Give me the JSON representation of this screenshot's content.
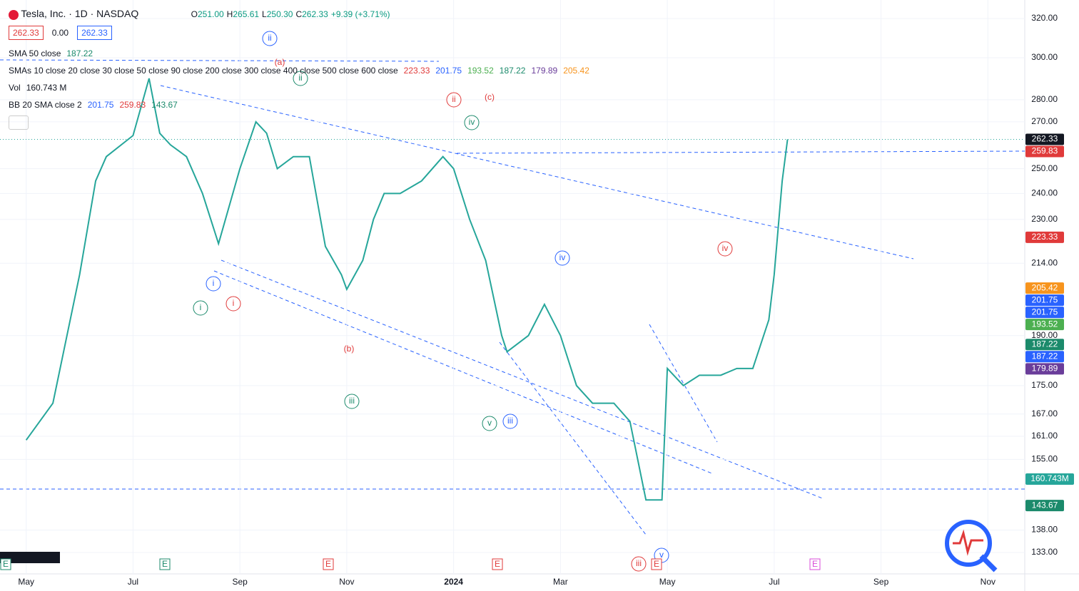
{
  "header": {
    "symbol": "Tesla, Inc. · 1D · NASDAQ",
    "ohlc": [
      "O",
      "251.00",
      "H",
      "265.61",
      "L",
      "250.30",
      "C",
      "262.33",
      "+9.39 (+3.71%)"
    ],
    "boxes": [
      "262.33",
      "0.00",
      "262.33"
    ]
  },
  "indicators": [
    {
      "name": "SMA 50 close",
      "values": [
        "187.22"
      ],
      "colors": [
        "#1b8a6b"
      ]
    },
    {
      "name": "SMAs 10 close 20 close 30 close 50 close 90 close 200 close 300 close 400 close 500 close 600 close",
      "values": [
        "223.33",
        "201.75",
        "193.52",
        "187.22",
        "179.89",
        "205.42"
      ],
      "colors": [
        "#e03a3a",
        "#2962ff",
        "#4caf50",
        "#1b8a6b",
        "#6a3d9a",
        "#f7941d"
      ]
    },
    {
      "name": "Vol",
      "values": [
        "160.743 M"
      ],
      "colors": [
        "#131722"
      ]
    },
    {
      "name": "BB 20 SMA close 2",
      "values": [
        "201.75",
        "259.83",
        "143.67"
      ],
      "colors": [
        "#2962ff",
        "#e03a3a",
        "#1b8a6b"
      ]
    }
  ],
  "chart_data": {
    "type": "line",
    "log": true,
    "grid": true,
    "x": [
      0,
      0.5,
      1,
      1.3,
      1.5,
      2,
      2.3,
      2.5,
      2.7,
      3,
      3.3,
      3.6,
      4,
      4.3,
      4.5,
      4.7,
      5,
      5.3,
      5.6,
      5.9,
      6,
      6.3,
      6.5,
      6.7,
      7,
      7.4,
      7.8,
      8,
      8.3,
      8.6,
      8.9,
      9,
      9.4,
      9.7,
      10,
      10.3,
      10.6,
      11,
      11.3,
      11.6,
      11.9,
      12,
      12.3,
      12.6,
      13,
      13.3,
      13.6,
      13.9,
      14,
      14.15,
      14.25
    ],
    "values": [
      160,
      170,
      210,
      245,
      255,
      264,
      290,
      265,
      260,
      255,
      240,
      221,
      250,
      270,
      265,
      250,
      255,
      255,
      220,
      210,
      205,
      215,
      230,
      240,
      240,
      245,
      255,
      250,
      230,
      215,
      190,
      185,
      190,
      200,
      190,
      175,
      170,
      170,
      165,
      145,
      145,
      180,
      175,
      178,
      178,
      180,
      180,
      195,
      210,
      245,
      262.33
    ],
    "color": "#26a69a",
    "xlim": [
      -0.49,
      18.69
    ],
    "xticks": [
      {
        "value": 0,
        "label": "May"
      },
      {
        "value": 2,
        "label": "Jul"
      },
      {
        "value": 4,
        "label": "Sep"
      },
      {
        "value": 6,
        "label": "Nov"
      },
      {
        "value": 8,
        "label": "2024"
      },
      {
        "value": 10,
        "label": "Mar"
      },
      {
        "value": 12,
        "label": "May"
      },
      {
        "value": 14,
        "label": "Jul"
      },
      {
        "value": 16,
        "label": "Sep"
      },
      {
        "value": 18,
        "label": "Nov"
      }
    ],
    "ylim": [
      128.4,
      329.9
    ],
    "yticks": [
      {
        "value": 320,
        "label": "320.00"
      },
      {
        "value": 300,
        "label": "300.00"
      },
      {
        "value": 280,
        "label": "280.00"
      },
      {
        "value": 270,
        "label": "270.00"
      },
      {
        "value": 250,
        "label": "250.00"
      },
      {
        "value": 240,
        "label": "240.00"
      },
      {
        "value": 230,
        "label": "230.00"
      },
      {
        "value": 214,
        "label": "214.00"
      },
      {
        "value": 190,
        "label": "190.00"
      },
      {
        "value": 175,
        "label": "175.00"
      },
      {
        "value": 167,
        "label": "167.00"
      },
      {
        "value": 161,
        "label": "161.00"
      },
      {
        "value": 155,
        "label": "155.00"
      },
      {
        "value": 138,
        "label": "138.00"
      },
      {
        "value": 133,
        "label": "133.00"
      }
    ],
    "price_labels": [
      {
        "value": 262.33,
        "color": "#131722"
      },
      {
        "value": 259.83,
        "color": "#e03a3a"
      },
      {
        "value": 223.33,
        "color": "#e03a3a"
      },
      {
        "value": 205.42,
        "color": "#f7941d"
      },
      {
        "value": 201.75,
        "color": "#2962ff"
      },
      {
        "value": 201.75,
        "color": "#2962ff"
      },
      {
        "value": 193.52,
        "color": "#4caf50"
      },
      {
        "value": 187.22,
        "color": "#1b8a6b"
      },
      {
        "value": 187.22,
        "color": "#2962ff"
      },
      {
        "value": 179.89,
        "color": "#6a3d9a"
      },
      {
        "value": 143.67,
        "color": "#1b8a6b"
      }
    ],
    "volume_label": "160.743M",
    "earnings": "E",
    "annotations": [
      {
        "text": "ii",
        "color": "#2962ff"
      },
      {
        "text": "i",
        "color": "#2962ff"
      },
      {
        "text": "iv",
        "color": "#2962ff"
      },
      {
        "text": "iii",
        "color": "#2962ff"
      },
      {
        "text": "v",
        "color": "#2962ff"
      },
      {
        "text": "(a)",
        "color": "#e03a3a"
      },
      {
        "text": "ii",
        "color": "#e03a3a"
      },
      {
        "text": "(c)",
        "color": "#e03a3a"
      },
      {
        "text": "i",
        "color": "#e03a3a"
      },
      {
        "text": "(b)",
        "color": "#e03a3a"
      },
      {
        "text": "iv",
        "color": "#e03a3a"
      },
      {
        "text": "iii",
        "color": "#e03a3a"
      },
      {
        "text": "ii",
        "color": "#1b8a6b"
      },
      {
        "text": "iv",
        "color": "#1b8a6b"
      },
      {
        "text": "i",
        "color": "#1b8a6b"
      },
      {
        "text": "iii",
        "color": "#1b8a6b"
      },
      {
        "text": "v",
        "color": "#1b8a6b"
      }
    ]
  }
}
